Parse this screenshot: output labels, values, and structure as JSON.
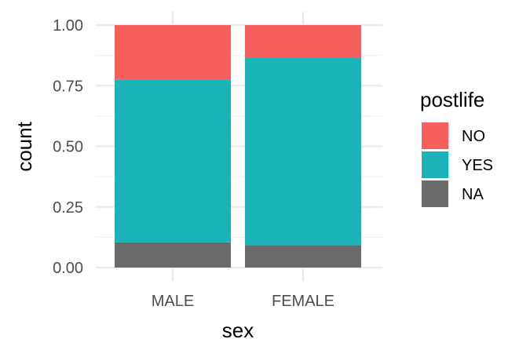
{
  "chart_data": {
    "type": "bar",
    "stacked": true,
    "xlabel": "sex",
    "ylabel": "count",
    "categories": [
      "MALE",
      "FEMALE"
    ],
    "ylim": [
      0,
      1
    ],
    "yticks": [
      "0.00",
      "0.25",
      "0.50",
      "0.75",
      "1.00"
    ],
    "ytick_values": [
      0,
      0.25,
      0.5,
      0.75,
      1.0
    ],
    "grid": true,
    "legend": {
      "title": "postlife",
      "position": "right",
      "entries": [
        "NO",
        "YES",
        "NA"
      ]
    },
    "series": [
      {
        "name": "NA",
        "color": "#6b6b6b",
        "values": [
          0.104,
          0.092
        ]
      },
      {
        "name": "YES",
        "color": "#19b3b8",
        "values": [
          0.672,
          0.772
        ]
      },
      {
        "name": "NO",
        "color": "#f5605c",
        "values": [
          0.224,
          0.136
        ]
      }
    ]
  }
}
